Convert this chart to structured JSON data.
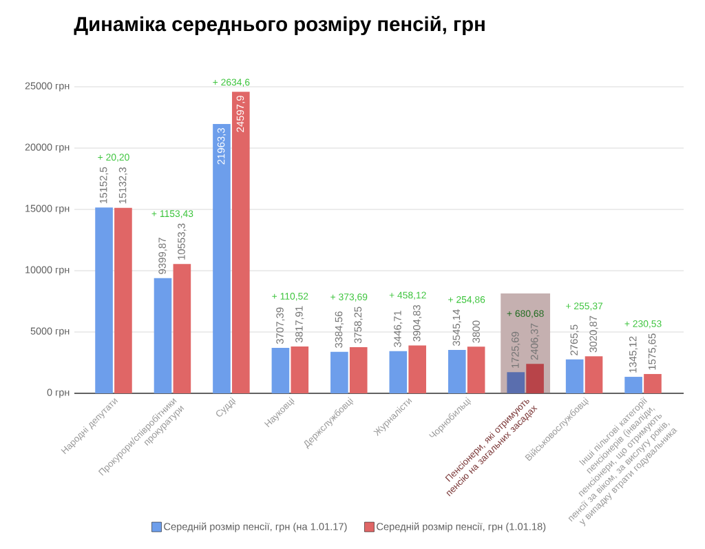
{
  "chart_data": {
    "type": "bar",
    "title": "Динаміка середнього розміру пенсій, грн",
    "categories": [
      "Народні депутати",
      "Прокурори/співробітники прокуратури",
      "Судді",
      "Науковці",
      "Держслужбовці",
      "Журналісти",
      "Чорнобильці",
      "Пенсіонери, які отримують пенсію на загальних засадах",
      "Військовослужбовці",
      "Інші пільгові категорії пенсіонерів (інваліди, пенсіонери, що отримують пенсії за віком, за вислугу років, у випадку втрати годувальника"
    ],
    "series": [
      {
        "name": "Середній розмір пенсії, грн (на 1.01.17)",
        "color": "#6d9eeb",
        "colors": [
          "#6d9eeb",
          "#6d9eeb",
          "#6d9eeb",
          "#6d9eeb",
          "#6d9eeb",
          "#6d9eeb",
          "#6d9eeb",
          "#5a6eae",
          "#6d9eeb",
          "#6d9eeb"
        ],
        "values": [
          15152.5,
          9399.87,
          21963.3,
          3707.39,
          3384.56,
          3446.71,
          3545.14,
          1725.69,
          2765.5,
          1345.12
        ],
        "value_labels": [
          "15152,5",
          "9399,87",
          "21963,3",
          "3707,39",
          "3384,56",
          "3446,71",
          "3545,14",
          "1725,69",
          "2765,5",
          "1345,12"
        ]
      },
      {
        "name": "Середній розмір пенсії, грн (1.01.18)",
        "color": "#e06666",
        "colors": [
          "#e06666",
          "#e06666",
          "#e06666",
          "#e06666",
          "#e06666",
          "#e06666",
          "#e06666",
          "#b84449",
          "#e06666",
          "#e06666"
        ],
        "values": [
          15132.3,
          10553.3,
          24597.9,
          3817.91,
          3758.25,
          3904.83,
          3800,
          2406.37,
          3020.87,
          1575.65
        ],
        "value_labels": [
          "15132,3",
          "10553,3",
          "24597,9",
          "3817,91",
          "3758,25",
          "3904,83",
          "3800",
          "2406,37",
          "3020,87",
          "1575,65"
        ]
      }
    ],
    "ylim": [
      0,
      25000
    ],
    "yticks": [
      {
        "value": 0,
        "label": "0 грн"
      },
      {
        "value": 5000,
        "label": "5000 грн"
      },
      {
        "value": 10000,
        "label": "10000 грн"
      },
      {
        "value": 15000,
        "label": "15000 грн"
      },
      {
        "value": 20000,
        "label": "20000 грн"
      },
      {
        "value": 25000,
        "label": "25000 грн"
      }
    ],
    "grid": "y",
    "legend": "bottom",
    "annotations": [
      "+ 20,20",
      "+ 1153,43",
      "+ 2634,6",
      "+ 110,52",
      "+ 373,69",
      "+ 458,12",
      "+ 254,86",
      "+ 680,68",
      "+ 255,37",
      "+ 230,53"
    ],
    "bands": [
      {
        "axis": "x",
        "from": "Пенсіонери, які отримують пенсію на загальних засадах",
        "to": "Пенсіонери, які отримують пенсію на загальних засадах",
        "color": "#c5b0b0"
      }
    ]
  }
}
